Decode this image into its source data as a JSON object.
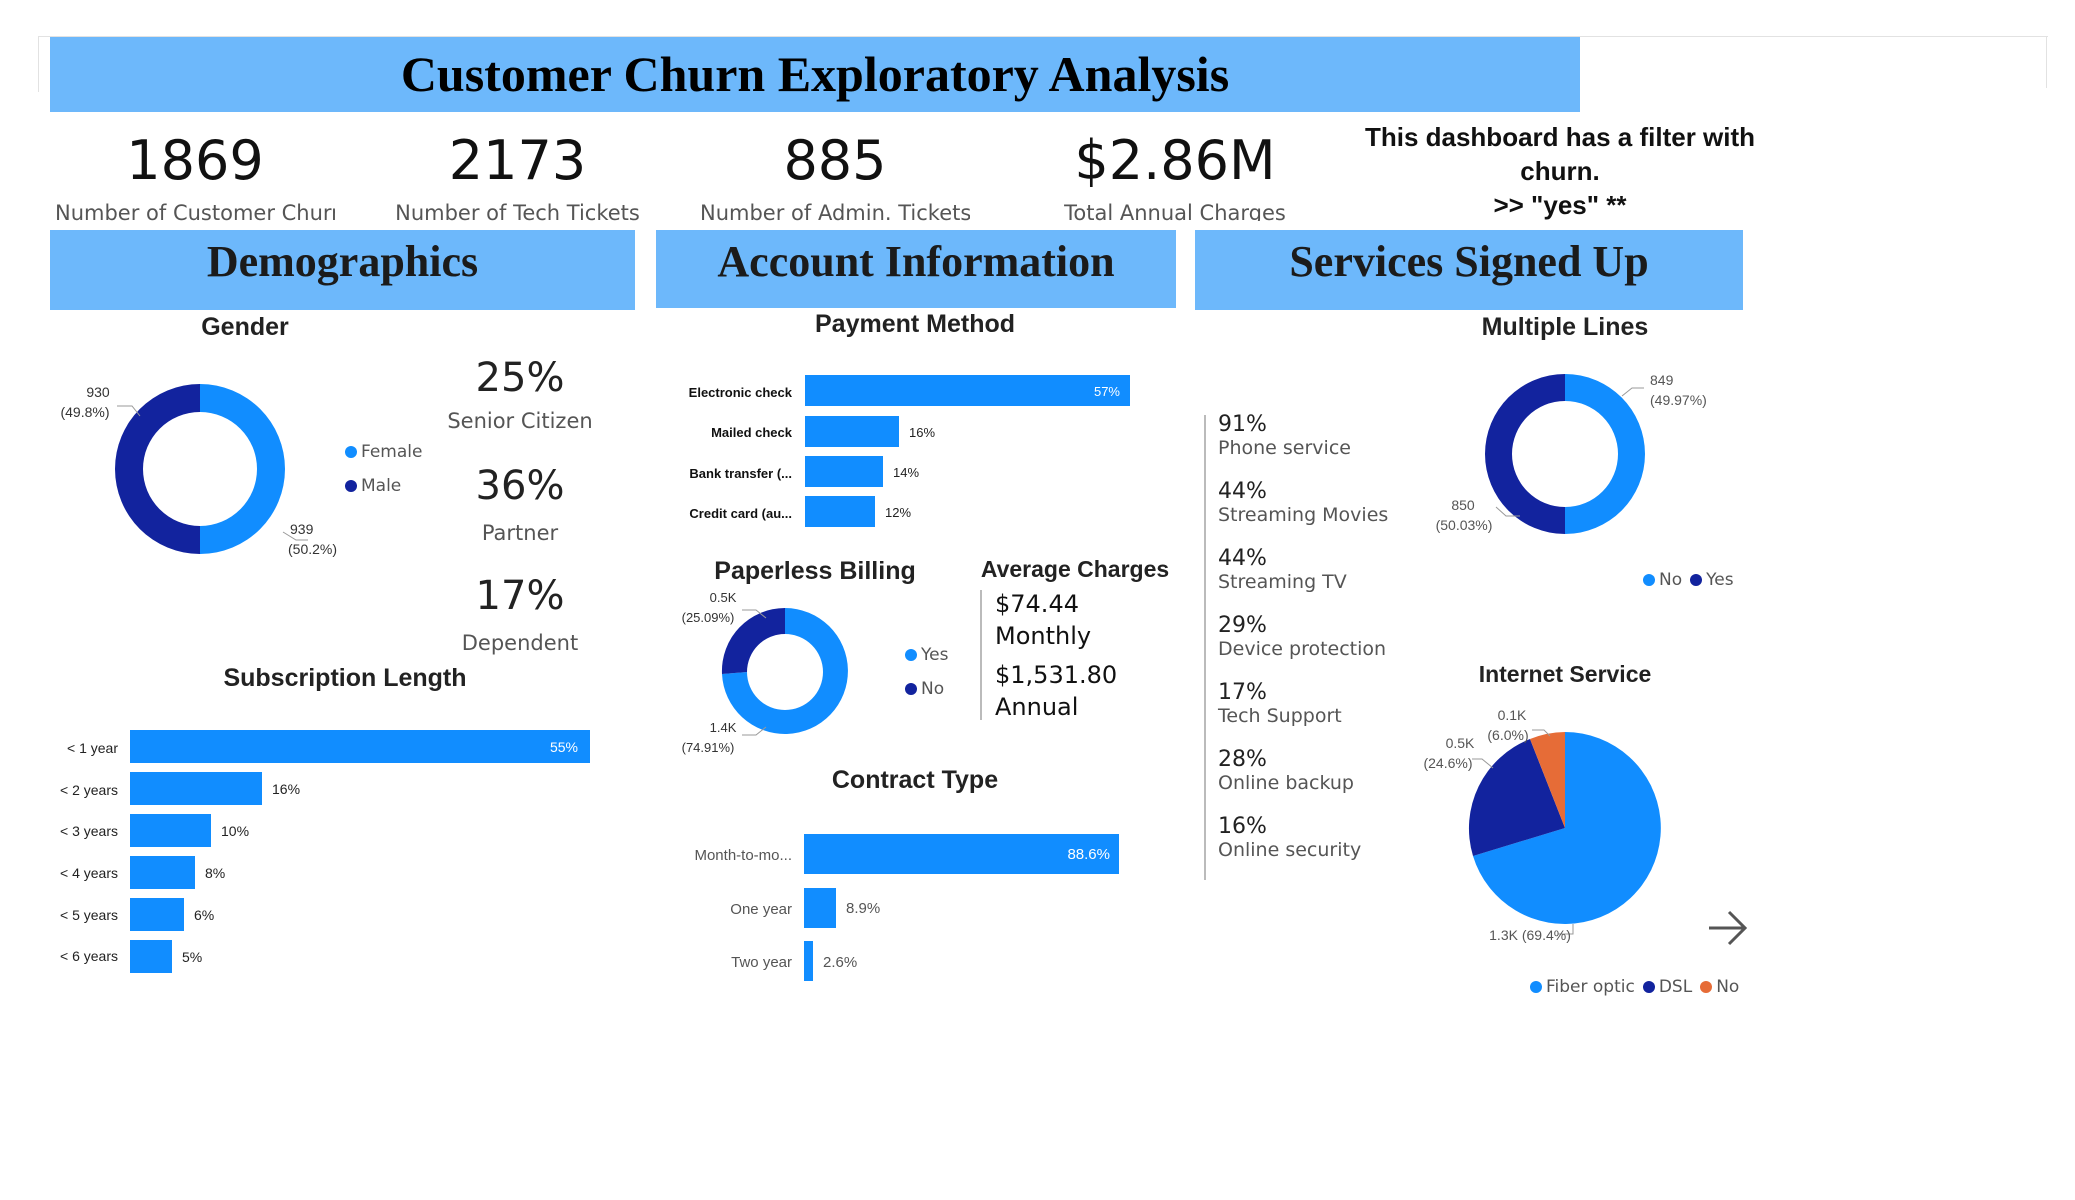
{
  "title": "Customer Churn Exploratory Analysis",
  "colors": {
    "accent": "#118dff",
    "dark": "#12239e",
    "orange": "#e66c37",
    "banner": "#6db8fb"
  },
  "kpis": [
    {
      "value": "1869",
      "label": "Number of Customer Churn"
    },
    {
      "value": "2173",
      "label": "Number of Tech Tickets"
    },
    {
      "value": "885",
      "label": "Number of Admin. Tickets"
    },
    {
      "value": "$2.86M",
      "label": "Total Annual Charges"
    }
  ],
  "note": {
    "line1": "This dashboard has a filter with",
    "line2": "churn.",
    "line3": ">> \"yes\" **"
  },
  "sections": {
    "demographics": "Demographics",
    "account": "Account Information",
    "services": "Services Signed Up"
  },
  "gender": {
    "title": "Gender",
    "female_label": "939",
    "female_pct": "(50.2%)",
    "male_label": "930",
    "male_pct": "(49.8%)",
    "legend_female": "Female",
    "legend_male": "Male"
  },
  "demo_stats": [
    {
      "pct": "25%",
      "label": "Senior Citizen"
    },
    {
      "pct": "36%",
      "label": "Partner"
    },
    {
      "pct": "17%",
      "label": "Dependent"
    }
  ],
  "subscription": {
    "title": "Subscription Length",
    "items": [
      {
        "label": "< 1 year",
        "pct": "55%"
      },
      {
        "label": "< 2 years",
        "pct": "16%"
      },
      {
        "label": "< 3 years",
        "pct": "10%"
      },
      {
        "label": "< 4 years",
        "pct": "8%"
      },
      {
        "label": "< 5 years",
        "pct": "6%"
      },
      {
        "label": "< 6 years",
        "pct": "5%"
      }
    ]
  },
  "payment": {
    "title": "Payment Method",
    "items": [
      {
        "label": "Electronic check",
        "pct": "57%"
      },
      {
        "label": "Mailed check",
        "pct": "16%"
      },
      {
        "label": "Bank transfer (...",
        "pct": "14%"
      },
      {
        "label": "Credit card (au...",
        "pct": "12%"
      }
    ]
  },
  "paperless": {
    "title": "Paperless Billing",
    "yes_label": "1.4K",
    "yes_pct": "(74.91%)",
    "no_label": "0.5K",
    "no_pct": "(25.09%)",
    "legend_yes": "Yes",
    "legend_no": "No"
  },
  "average_charges": {
    "title": "Average Charges",
    "monthly_value": "$74.44",
    "monthly_label": "Monthly",
    "annual_value": "$1,531.80",
    "annual_label": "Annual"
  },
  "contract": {
    "title": "Contract Type",
    "items": [
      {
        "label": "Month-to-mo...",
        "pct": "88.6%"
      },
      {
        "label": "One year",
        "pct": "8.9%"
      },
      {
        "label": "Two year",
        "pct": "2.6%"
      }
    ]
  },
  "services": [
    {
      "pct": "91%",
      "label": "Phone service"
    },
    {
      "pct": "44%",
      "label": "Streaming Movies"
    },
    {
      "pct": "44%",
      "label": "Streaming TV"
    },
    {
      "pct": "29%",
      "label": "Device protection"
    },
    {
      "pct": "17%",
      "label": "Tech Support"
    },
    {
      "pct": "28%",
      "label": "Online backup"
    },
    {
      "pct": "16%",
      "label": "Online security"
    }
  ],
  "multiple_lines": {
    "title": "Multiple Lines",
    "no_label": "849",
    "no_pct": "(49.97%)",
    "yes_label": "850",
    "yes_pct": "(50.03%)",
    "legend_no": "No",
    "legend_yes": "Yes"
  },
  "internet": {
    "title": "Internet Service",
    "fiber_label": "1.3K (69.4%)",
    "dsl_label": "0.5K",
    "dsl_pct": "(24.6%)",
    "no_label": "0.1K",
    "no_pct": "(6.0%)",
    "legend_fiber": "Fiber optic",
    "legend_dsl": "DSL",
    "legend_no": "No"
  },
  "chart_data": [
    {
      "type": "pie",
      "title": "Gender",
      "labels": [
        "Female",
        "Male"
      ],
      "values": [
        939,
        930
      ]
    },
    {
      "type": "bar",
      "title": "Subscription Length",
      "categories": [
        "< 1 year",
        "< 2 years",
        "< 3 years",
        "< 4 years",
        "< 5 years",
        "< 6 years"
      ],
      "values": [
        55,
        16,
        10,
        8,
        6,
        5
      ]
    },
    {
      "type": "bar",
      "title": "Payment Method",
      "categories": [
        "Electronic check",
        "Mailed check",
        "Bank transfer (...",
        "Credit card (au..."
      ],
      "values": [
        57,
        16,
        14,
        12
      ]
    },
    {
      "type": "pie",
      "title": "Paperless Billing",
      "labels": [
        "Yes",
        "No"
      ],
      "values": [
        74.91,
        25.09
      ]
    },
    {
      "type": "bar",
      "title": "Contract Type",
      "categories": [
        "Month-to-mo...",
        "One year",
        "Two year"
      ],
      "values": [
        88.6,
        8.9,
        2.6
      ]
    },
    {
      "type": "pie",
      "title": "Multiple Lines",
      "labels": [
        "No",
        "Yes"
      ],
      "values": [
        849,
        850
      ]
    },
    {
      "type": "pie",
      "title": "Internet Service",
      "labels": [
        "Fiber optic",
        "DSL",
        "No"
      ],
      "values": [
        69.4,
        24.6,
        6.0
      ]
    }
  ]
}
